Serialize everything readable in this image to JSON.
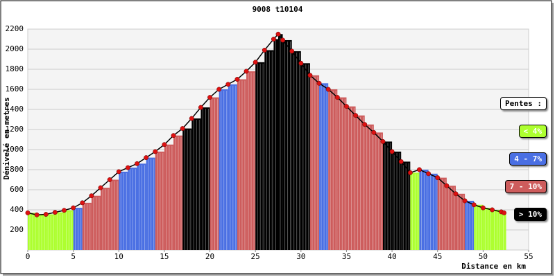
{
  "chart_data": {
    "type": "profile",
    "title": "9008 t10104",
    "y_label": "Dénivelé en metres",
    "x_label": "Distance en km",
    "x": [
      0,
      1,
      2,
      3,
      4,
      5,
      6,
      7,
      8,
      9,
      10,
      11,
      12,
      13,
      14,
      15,
      16,
      17,
      18,
      19,
      20,
      21,
      22,
      23,
      24,
      25,
      26,
      27,
      27.5,
      28,
      29,
      30,
      31,
      32,
      33,
      34,
      35,
      36,
      37,
      38,
      39,
      40,
      41,
      42,
      43,
      44,
      45,
      46,
      47,
      48,
      49,
      50,
      51,
      52,
      52.3
    ],
    "values": [
      370,
      350,
      355,
      375,
      395,
      420,
      470,
      540,
      620,
      700,
      780,
      820,
      860,
      920,
      980,
      1050,
      1140,
      1210,
      1310,
      1420,
      1520,
      1600,
      1650,
      1700,
      1780,
      1870,
      1990,
      2100,
      2150,
      2090,
      1980,
      1860,
      1740,
      1660,
      1600,
      1520,
      1430,
      1340,
      1250,
      1170,
      1080,
      980,
      880,
      770,
      800,
      760,
      720,
      640,
      560,
      490,
      450,
      420,
      400,
      380,
      370
    ],
    "bar_colors": [
      "#adff2f",
      "#adff2f",
      "#adff2f",
      "#adff2f",
      "#adff2f",
      "#4a6fe3",
      "#cd5c5c",
      "#cd5c5c",
      "#cd5c5c",
      "#cd5c5c",
      "#4a6fe3",
      "#4a6fe3",
      "#4a6fe3",
      "#4a6fe3",
      "#cd5c5c",
      "#cd5c5c",
      "#cd5c5c",
      "#000000",
      "#000000",
      "#000000",
      "#cd5c5c",
      "#4a6fe3",
      "#4a6fe3",
      "#cd5c5c",
      "#cd5c5c",
      "#000000",
      "#000000",
      "#000000",
      "#000000",
      "#000000",
      "#000000",
      "#000000",
      "#cd5c5c",
      "#4a6fe3",
      "#cd5c5c",
      "#cd5c5c",
      "#cd5c5c",
      "#cd5c5c",
      "#cd5c5c",
      "#cd5c5c",
      "#000000",
      "#000000",
      "#000000",
      "#adff2f",
      "#4a6fe3",
      "#4a6fe3",
      "#cd5c5c",
      "#cd5c5c",
      "#cd5c5c",
      "#4a6fe3",
      "#adff2f",
      "#adff2f",
      "#adff2f",
      "#adff2f",
      "#adff2f"
    ],
    "point_color": "#dd1111",
    "xlim": [
      0,
      55
    ],
    "xticks": [
      0,
      5,
      10,
      15,
      20,
      25,
      30,
      35,
      40,
      45,
      50,
      55
    ],
    "ylim": [
      0,
      2200
    ],
    "yticks": [
      200,
      400,
      600,
      800,
      1000,
      1200,
      1400,
      1600,
      1800,
      2000,
      2200
    ],
    "grid": true,
    "legend": {
      "title": "Pentes :",
      "items": [
        {
          "name": "< 4%",
          "color": "#adff2f",
          "text_color": "#ffffff"
        },
        {
          "name": "4 - 7%",
          "color": "#4a6fe3",
          "text_color": "#ffffff"
        },
        {
          "name": "7 - 10%",
          "color": "#cd5c5c",
          "text_color": "#ffffff"
        },
        {
          "name": "> 10%",
          "color": "#000000",
          "text_color": "#ffffff"
        }
      ]
    }
  }
}
